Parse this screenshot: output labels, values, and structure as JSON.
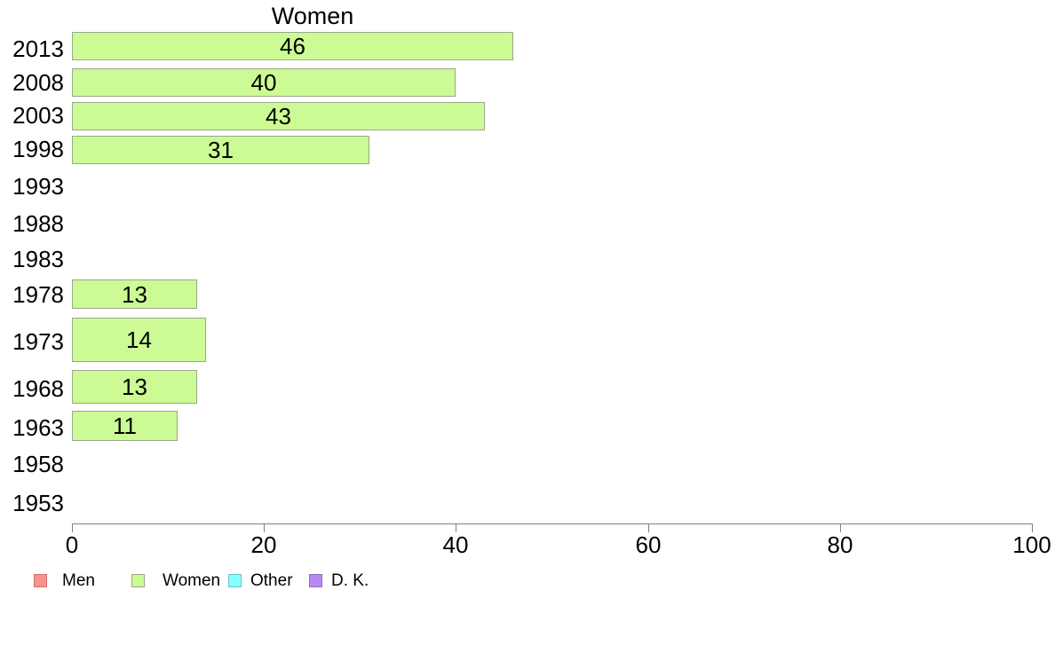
{
  "chart_data": {
    "type": "bar",
    "orientation": "horizontal",
    "title": "Women",
    "categories": [
      "2013",
      "2008",
      "2003",
      "1998",
      "1993",
      "1988",
      "1983",
      "1978",
      "1973",
      "1968",
      "1963",
      "1958",
      "1953"
    ],
    "values": [
      46,
      40,
      43,
      31,
      null,
      null,
      null,
      13,
      14,
      13,
      11,
      null,
      null
    ],
    "bar_value_labels": [
      "46",
      "40",
      "43",
      "31",
      "",
      "",
      "",
      "13",
      "14",
      "13",
      "11",
      "",
      ""
    ],
    "xlabel": "",
    "ylabel": "",
    "xlim": [
      0,
      100
    ],
    "xticks": [
      0,
      20,
      40,
      60,
      80,
      100
    ],
    "xtick_labels": [
      "0",
      "20",
      "40",
      "60",
      "80",
      "100"
    ],
    "grid": false,
    "legend_position": "bottom-left",
    "legend": [
      {
        "label": "Men",
        "fill": "#f59390",
        "border": "#d96d68"
      },
      {
        "label": "Women",
        "fill": "#ccfa94",
        "border": "#9aa88a"
      },
      {
        "label": "Other",
        "fill": "#85ffff",
        "border": "#6fc3c3"
      },
      {
        "label": "D. K.",
        "fill": "#b98aee",
        "border": "#9268c4"
      }
    ],
    "colors": {
      "bar_fill": "#ccfa94",
      "bar_border": "#9aa88a",
      "axis": "#808080",
      "text": "#000000",
      "background": "#ffffff"
    }
  }
}
